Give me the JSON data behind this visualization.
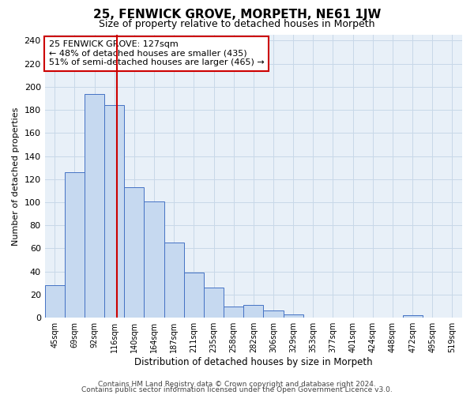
{
  "title": "25, FENWICK GROVE, MORPETH, NE61 1JW",
  "subtitle": "Size of property relative to detached houses in Morpeth",
  "xlabel": "Distribution of detached houses by size in Morpeth",
  "ylabel": "Number of detached properties",
  "bar_labels": [
    "45sqm",
    "69sqm",
    "92sqm",
    "116sqm",
    "140sqm",
    "164sqm",
    "187sqm",
    "211sqm",
    "235sqm",
    "258sqm",
    "282sqm",
    "306sqm",
    "329sqm",
    "353sqm",
    "377sqm",
    "401sqm",
    "424sqm",
    "448sqm",
    "472sqm",
    "495sqm",
    "519sqm"
  ],
  "bar_values": [
    28,
    126,
    194,
    184,
    113,
    101,
    65,
    39,
    26,
    10,
    11,
    6,
    3,
    0,
    0,
    0,
    0,
    0,
    2,
    0,
    0
  ],
  "bar_color": "#c6d9f0",
  "bar_edge_color": "#4472c4",
  "vline_x": 3.15,
  "vline_color": "#cc0000",
  "ylim": [
    0,
    245
  ],
  "yticks": [
    0,
    20,
    40,
    60,
    80,
    100,
    120,
    140,
    160,
    180,
    200,
    220,
    240
  ],
  "annotation_box_text": "25 FENWICK GROVE: 127sqm\n← 48% of detached houses are smaller (435)\n51% of semi-detached houses are larger (465) →",
  "footer_line1": "Contains HM Land Registry data © Crown copyright and database right 2024.",
  "footer_line2": "Contains public sector information licensed under the Open Government Licence v3.0.",
  "grid_color": "#c8d8e8",
  "background_color": "#ffffff",
  "plot_bg_color": "#e8f0f8",
  "title_fontsize": 11,
  "subtitle_fontsize": 9,
  "footer_fontsize": 6.5,
  "ylabel_fontsize": 8,
  "xlabel_fontsize": 8.5,
  "tick_fontsize": 7,
  "annotation_fontsize": 8
}
